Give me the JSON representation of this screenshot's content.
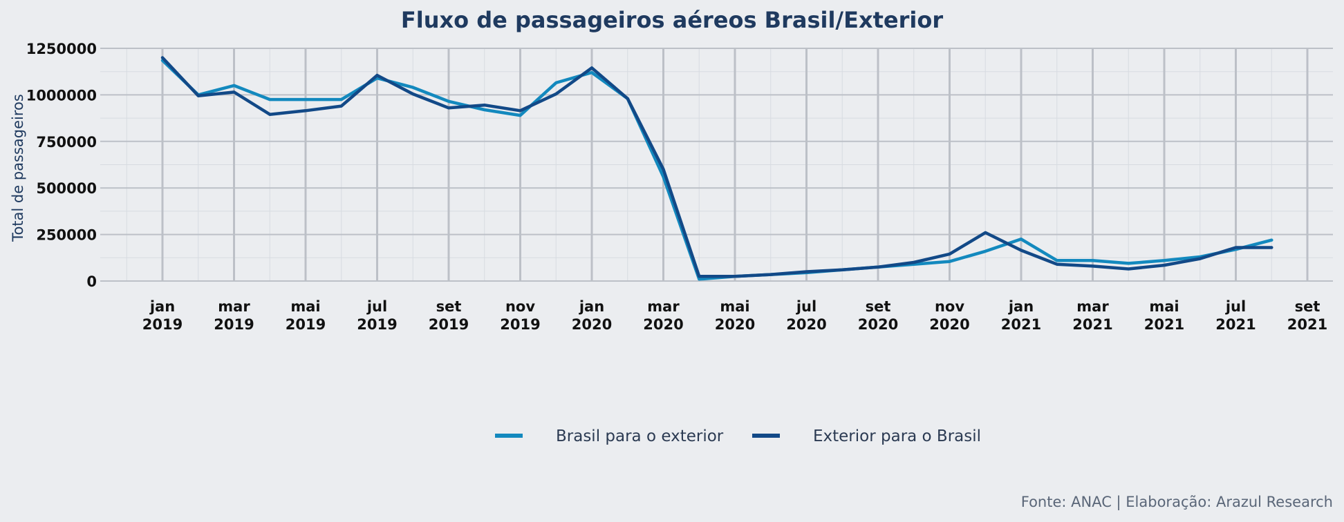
{
  "chart_data": {
    "type": "line",
    "title": "Fluxo de passageiros aéreos Brasil/Exterior",
    "xlabel": "",
    "ylabel": "Total de passageiros",
    "ylim": [
      0,
      1250000
    ],
    "yticks": [
      0,
      250000,
      500000,
      750000,
      1000000,
      1250000
    ],
    "ytick_labels": [
      "0",
      "250000",
      "500000",
      "750000",
      "1000000",
      "1250000"
    ],
    "x": [
      "2019-01",
      "2019-02",
      "2019-03",
      "2019-04",
      "2019-05",
      "2019-06",
      "2019-07",
      "2019-08",
      "2019-09",
      "2019-10",
      "2019-11",
      "2019-12",
      "2020-01",
      "2020-02",
      "2020-03",
      "2020-04",
      "2020-05",
      "2020-06",
      "2020-07",
      "2020-08",
      "2020-09",
      "2020-10",
      "2020-11",
      "2020-12",
      "2021-01",
      "2021-02",
      "2021-03",
      "2021-04",
      "2021-05",
      "2021-06",
      "2021-07",
      "2021-08"
    ],
    "xticks": [
      "2019-01",
      "2019-03",
      "2019-05",
      "2019-07",
      "2019-09",
      "2019-11",
      "2020-01",
      "2020-03",
      "2020-05",
      "2020-07",
      "2020-09",
      "2020-11",
      "2021-01",
      "2021-03",
      "2021-05",
      "2021-07",
      "2021-09"
    ],
    "xtick_labels": [
      [
        "jan",
        "2019"
      ],
      [
        "mar",
        "2019"
      ],
      [
        "mai",
        "2019"
      ],
      [
        "jul",
        "2019"
      ],
      [
        "set",
        "2019"
      ],
      [
        "nov",
        "2019"
      ],
      [
        "jan",
        "2020"
      ],
      [
        "mar",
        "2020"
      ],
      [
        "mai",
        "2020"
      ],
      [
        "jul",
        "2020"
      ],
      [
        "set",
        "2020"
      ],
      [
        "nov",
        "2020"
      ],
      [
        "jan",
        "2021"
      ],
      [
        "mar",
        "2021"
      ],
      [
        "mai",
        "2021"
      ],
      [
        "jul",
        "2021"
      ],
      [
        "set",
        "2021"
      ]
    ],
    "series": [
      {
        "name": "Brasil para o exterior",
        "color": "#1389be",
        "values": [
          1185000,
          1000000,
          1050000,
          975000,
          975000,
          975000,
          1090000,
          1040000,
          965000,
          920000,
          890000,
          1065000,
          1120000,
          980000,
          560000,
          10000,
          25000,
          35000,
          45000,
          60000,
          75000,
          90000,
          105000,
          160000,
          225000,
          110000,
          110000,
          95000,
          110000,
          130000,
          170000,
          220000
        ]
      },
      {
        "name": "Exterior para o Brasil",
        "color": "#124987",
        "values": [
          1200000,
          995000,
          1015000,
          895000,
          915000,
          940000,
          1105000,
          1005000,
          930000,
          945000,
          915000,
          1005000,
          1145000,
          980000,
          600000,
          25000,
          25000,
          35000,
          50000,
          60000,
          75000,
          100000,
          145000,
          260000,
          165000,
          90000,
          80000,
          65000,
          85000,
          120000,
          180000,
          180000
        ]
      }
    ],
    "grid": true,
    "legend_position": "bottom"
  },
  "caption": "Fonte: ANAC | Elaboração: Arazul Research"
}
